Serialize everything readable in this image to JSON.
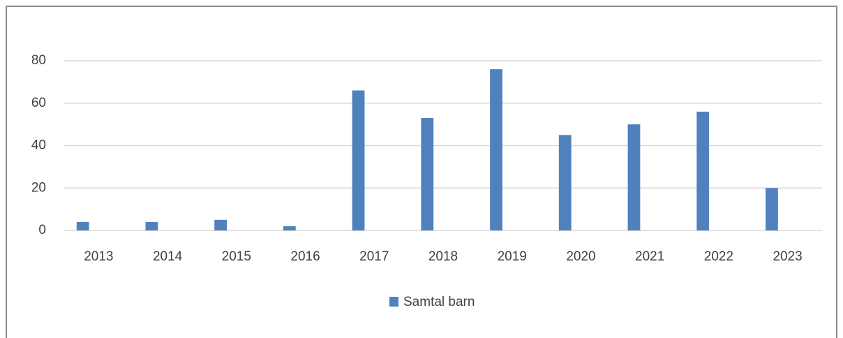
{
  "chart_data": {
    "type": "bar",
    "categories": [
      "2013",
      "2014",
      "2015",
      "2016",
      "2017",
      "2018",
      "2019",
      "2020",
      "2021",
      "2022",
      "2023"
    ],
    "series": [
      {
        "name": "Samtal barn",
        "color": "#4f81bd",
        "values": [
          4,
          4,
          5,
          2,
          66,
          53,
          76,
          45,
          50,
          56,
          20
        ]
      }
    ],
    "ylim": [
      0,
      80
    ],
    "yticks": [
      0,
      20,
      40,
      60,
      80
    ],
    "grid": true,
    "legend": "bottom"
  }
}
